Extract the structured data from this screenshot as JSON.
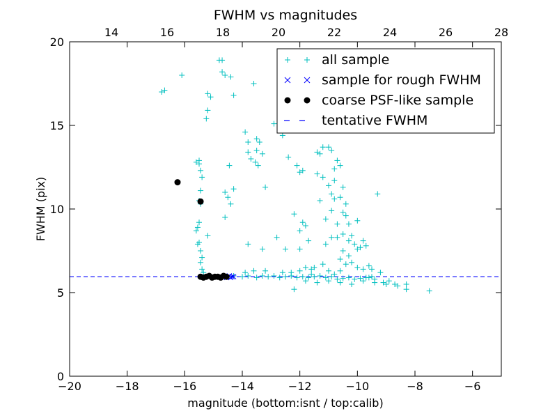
{
  "chart_data": {
    "type": "scatter",
    "title": "FWHM vs magnitudes",
    "xlabel": "magnitude (bottom:isnt / top:calib)",
    "ylabel": "FWHM (pix)",
    "xlim": [
      -20,
      -5
    ],
    "ylim": [
      0,
      20
    ],
    "x_ticks": [
      -20,
      -18,
      -16,
      -14,
      -12,
      -10,
      -8,
      -6
    ],
    "x_tick_labels": [
      "−20",
      "−18",
      "−16",
      "−14",
      "−12",
      "−10",
      "−8",
      "−6"
    ],
    "y_ticks": [
      0,
      5,
      10,
      15,
      20
    ],
    "y_tick_labels": [
      "0",
      "5",
      "10",
      "15",
      "20"
    ],
    "top_xlim": [
      12.5,
      28
    ],
    "top_x_ticks": [
      14,
      16,
      18,
      20,
      22,
      24,
      26,
      28
    ],
    "top_x_tick_labels": [
      "14",
      "16",
      "18",
      "20",
      "22",
      "24",
      "26",
      "28"
    ],
    "grid": false,
    "legend_position": "top-right",
    "tentative_fwhm": 5.95,
    "colors": {
      "all": "#00bfbf",
      "rough": "#0000ff",
      "coarse": "#000000",
      "tentative": "#0000ff"
    },
    "series": [
      {
        "name": "all sample",
        "marker": "plus",
        "points": [
          [
            -16.8,
            17.0
          ],
          [
            -16.7,
            17.1
          ],
          [
            -16.1,
            18.0
          ],
          [
            -15.6,
            12.8
          ],
          [
            -15.5,
            12.7
          ],
          [
            -15.5,
            12.9
          ],
          [
            -15.45,
            12.3
          ],
          [
            -15.4,
            11.9
          ],
          [
            -15.45,
            11.1
          ],
          [
            -15.5,
            10.5
          ],
          [
            -15.45,
            10.3
          ],
          [
            -15.5,
            9.2
          ],
          [
            -15.55,
            8.9
          ],
          [
            -15.6,
            8.7
          ],
          [
            -15.5,
            8.0
          ],
          [
            -15.55,
            7.9
          ],
          [
            -15.45,
            7.5
          ],
          [
            -15.4,
            7.1
          ],
          [
            -15.45,
            6.8
          ],
          [
            -15.4,
            6.4
          ],
          [
            -15.35,
            6.2
          ],
          [
            -15.2,
            16.9
          ],
          [
            -15.1,
            16.7
          ],
          [
            -15.2,
            15.9
          ],
          [
            -15.25,
            15.4
          ],
          [
            -15.2,
            8.4
          ],
          [
            -14.8,
            18.9
          ],
          [
            -14.7,
            18.9
          ],
          [
            -14.7,
            18.2
          ],
          [
            -14.6,
            18.0
          ],
          [
            -14.4,
            17.9
          ],
          [
            -14.3,
            16.8
          ],
          [
            -14.6,
            11.0
          ],
          [
            -14.5,
            10.7
          ],
          [
            -14.4,
            10.3
          ],
          [
            -14.45,
            12.6
          ],
          [
            -14.6,
            9.5
          ],
          [
            -14.3,
            11.2
          ],
          [
            -13.9,
            14.6
          ],
          [
            -13.8,
            13.4
          ],
          [
            -13.7,
            13.0
          ],
          [
            -13.8,
            14.0
          ],
          [
            -13.6,
            17.5
          ],
          [
            -13.5,
            13.5
          ],
          [
            -13.55,
            12.8
          ],
          [
            -13.45,
            12.6
          ],
          [
            -13.3,
            13.3
          ],
          [
            -13.5,
            14.2
          ],
          [
            -13.4,
            14.0
          ],
          [
            -13.2,
            11.3
          ],
          [
            -13.8,
            7.9
          ],
          [
            -13.6,
            6.3
          ],
          [
            -13.3,
            7.6
          ],
          [
            -12.9,
            15.1
          ],
          [
            -12.6,
            14.4
          ],
          [
            -12.8,
            8.3
          ],
          [
            -12.5,
            7.6
          ],
          [
            -12.3,
            6.2
          ],
          [
            -12.4,
            13.1
          ],
          [
            -12.1,
            12.6
          ],
          [
            -12.0,
            12.2
          ],
          [
            -11.9,
            12.3
          ],
          [
            -12.2,
            9.7
          ],
          [
            -12.0,
            8.7
          ],
          [
            -11.9,
            9.2
          ],
          [
            -11.8,
            9.0
          ],
          [
            -11.7,
            8.1
          ],
          [
            -12.0,
            7.6
          ],
          [
            -11.8,
            6.5
          ],
          [
            -11.4,
            13.4
          ],
          [
            -11.3,
            13.3
          ],
          [
            -11.2,
            13.7
          ],
          [
            -11.0,
            13.7
          ],
          [
            -10.9,
            13.5
          ],
          [
            -11.4,
            12.1
          ],
          [
            -11.2,
            11.9
          ],
          [
            -11.0,
            11.4
          ],
          [
            -10.8,
            11.7
          ],
          [
            -10.8,
            12.4
          ],
          [
            -10.7,
            12.9
          ],
          [
            -10.6,
            12.6
          ],
          [
            -10.9,
            10.9
          ],
          [
            -10.8,
            10.6
          ],
          [
            -10.6,
            10.7
          ],
          [
            -10.5,
            11.3
          ],
          [
            -10.4,
            10.3
          ],
          [
            -11.3,
            10.5
          ],
          [
            -11.1,
            9.4
          ],
          [
            -10.9,
            9.9
          ],
          [
            -10.7,
            9.1
          ],
          [
            -10.5,
            9.8
          ],
          [
            -10.4,
            9.6
          ],
          [
            -10.3,
            9.1
          ],
          [
            -10.2,
            8.4
          ],
          [
            -10.0,
            9.3
          ],
          [
            -11.1,
            7.9
          ],
          [
            -10.9,
            8.3
          ],
          [
            -10.7,
            8.3
          ],
          [
            -10.5,
            8.5
          ],
          [
            -10.3,
            8.1
          ],
          [
            -10.1,
            7.9
          ],
          [
            -10.5,
            7.5
          ],
          [
            -10.3,
            7.2
          ],
          [
            -10.0,
            7.6
          ],
          [
            -9.8,
            8.1
          ],
          [
            -9.9,
            7.7
          ],
          [
            -9.7,
            7.8
          ],
          [
            -10.6,
            7.0
          ],
          [
            -10.4,
            6.7
          ],
          [
            -10.2,
            6.8
          ],
          [
            -10.0,
            6.5
          ],
          [
            -9.8,
            6.4
          ],
          [
            -9.6,
            6.6
          ],
          [
            -9.5,
            6.4
          ],
          [
            -9.3,
            10.9
          ],
          [
            -9.2,
            6.2
          ],
          [
            -9.4,
            5.8
          ],
          [
            -9.6,
            5.9
          ],
          [
            -9.1,
            5.6
          ],
          [
            -9.0,
            5.5
          ],
          [
            -8.9,
            5.7
          ],
          [
            -8.7,
            5.5
          ],
          [
            -8.6,
            5.4
          ],
          [
            -8.3,
            5.2
          ],
          [
            -8.3,
            5.5
          ],
          [
            -7.5,
            5.1
          ],
          [
            -11.6,
            6.1
          ],
          [
            -11.5,
            6.5
          ],
          [
            -11.0,
            6.3
          ],
          [
            -10.8,
            6.1
          ],
          [
            -11.2,
            6.7
          ],
          [
            -10.6,
            6.3
          ],
          [
            -14.3,
            6.0
          ],
          [
            -14.0,
            5.95
          ],
          [
            -13.8,
            6.0
          ],
          [
            -13.5,
            5.9
          ],
          [
            -13.3,
            6.0
          ],
          [
            -13.1,
            5.95
          ],
          [
            -12.9,
            6.0
          ],
          [
            -12.7,
            5.9
          ],
          [
            -12.5,
            5.95
          ],
          [
            -12.3,
            6.0
          ],
          [
            -12.1,
            5.9
          ],
          [
            -11.9,
            5.95
          ],
          [
            -11.7,
            5.9
          ],
          [
            -11.5,
            5.95
          ],
          [
            -11.3,
            6.0
          ],
          [
            -11.1,
            5.9
          ],
          [
            -10.9,
            5.95
          ],
          [
            -10.7,
            5.8
          ],
          [
            -10.5,
            5.85
          ],
          [
            -10.3,
            5.9
          ],
          [
            -10.1,
            5.8
          ],
          [
            -9.9,
            5.85
          ],
          [
            -9.7,
            5.9
          ],
          [
            -9.5,
            5.95
          ],
          [
            -12.2,
            5.2
          ],
          [
            -11.8,
            5.7
          ],
          [
            -11.4,
            5.6
          ],
          [
            -11.0,
            5.7
          ],
          [
            -10.6,
            5.6
          ],
          [
            -10.2,
            5.5
          ],
          [
            -9.8,
            5.7
          ],
          [
            -9.4,
            5.6
          ],
          [
            -13.9,
            6.2
          ],
          [
            -13.2,
            6.3
          ],
          [
            -12.6,
            6.2
          ],
          [
            -12.0,
            6.3
          ],
          [
            -11.6,
            6.4
          ]
        ]
      },
      {
        "name": "sample for rough FWHM",
        "marker": "x",
        "points": [
          [
            -14.6,
            5.95
          ],
          [
            -14.55,
            5.9
          ],
          [
            -14.5,
            5.95
          ],
          [
            -14.45,
            6.0
          ],
          [
            -14.4,
            5.9
          ],
          [
            -14.35,
            5.95
          ],
          [
            -14.3,
            5.95
          ]
        ]
      },
      {
        "name": "coarse PSF-like sample",
        "marker": "dot",
        "points": [
          [
            -16.25,
            11.6
          ],
          [
            -15.45,
            10.45
          ],
          [
            -15.45,
            5.95
          ],
          [
            -15.35,
            5.9
          ],
          [
            -15.25,
            5.95
          ],
          [
            -15.15,
            6.0
          ],
          [
            -15.05,
            5.9
          ],
          [
            -14.95,
            5.95
          ],
          [
            -14.85,
            5.95
          ],
          [
            -14.75,
            5.9
          ],
          [
            -14.65,
            6.0
          ],
          [
            -14.55,
            5.95
          ]
        ]
      },
      {
        "name": "tentative FWHM",
        "marker": "dashed-line"
      }
    ]
  }
}
